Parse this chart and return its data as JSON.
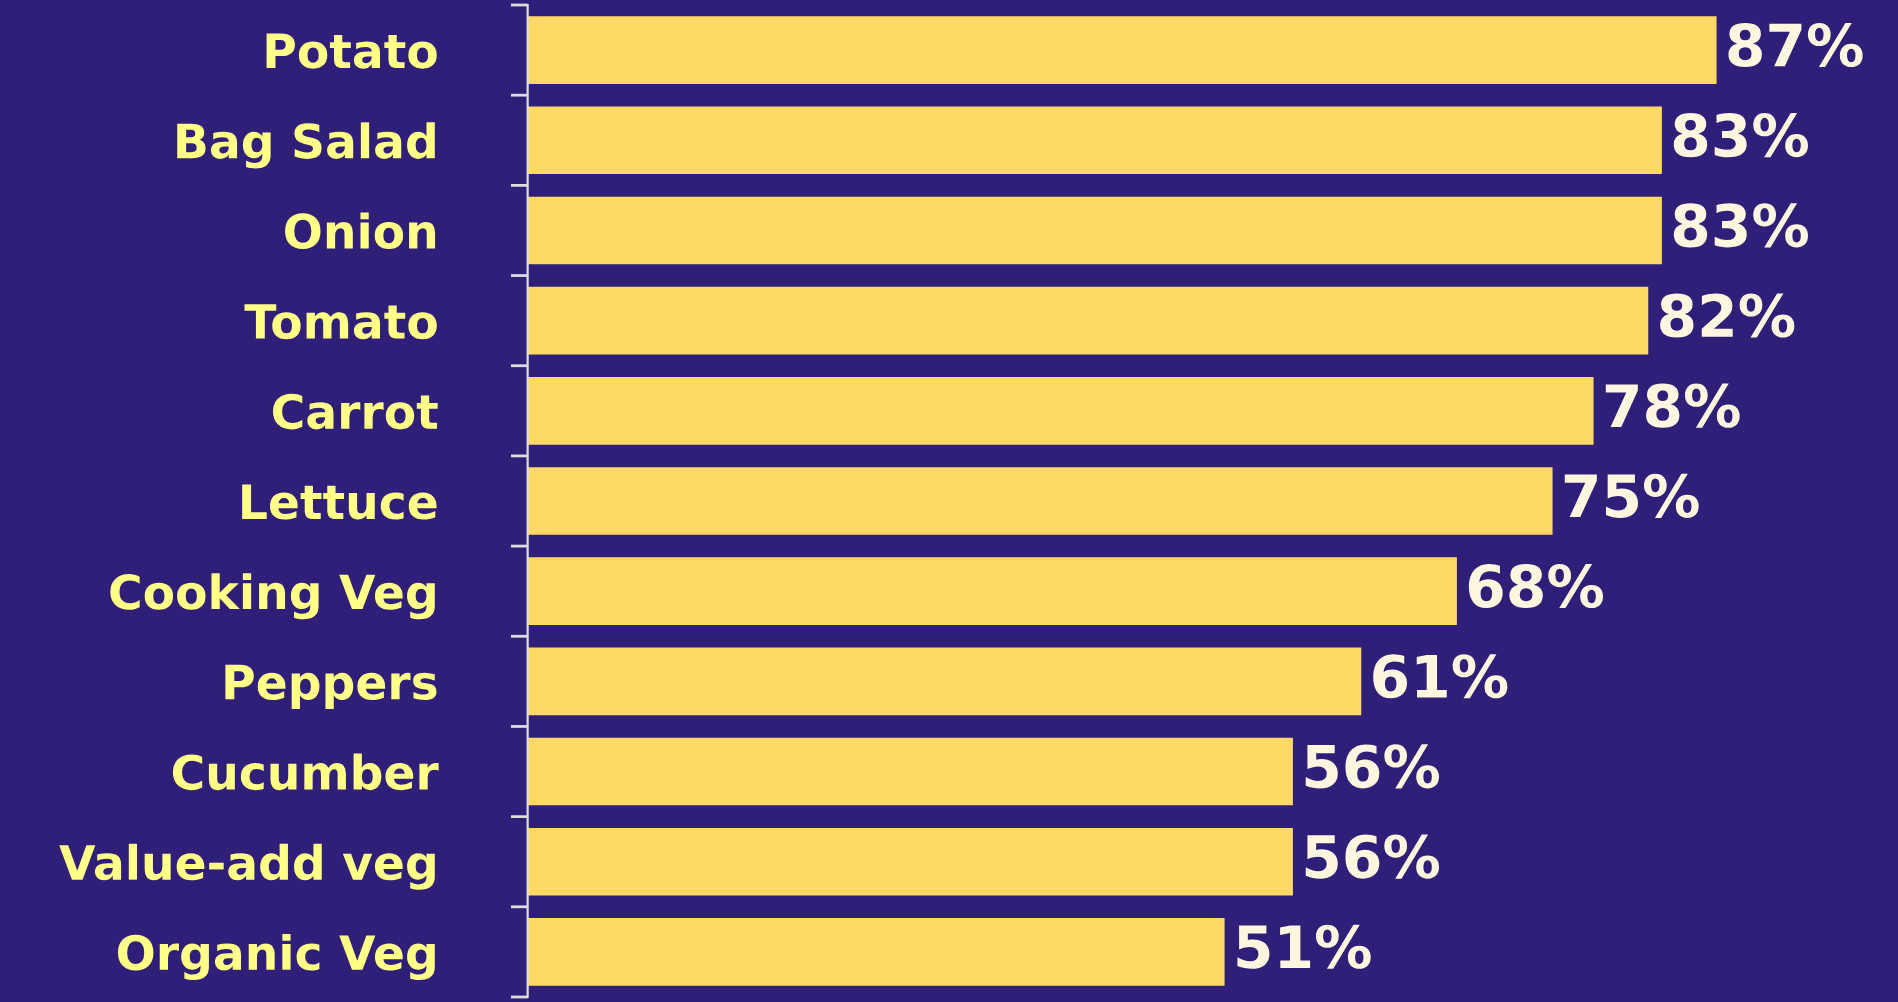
{
  "chart_data": {
    "type": "bar",
    "orientation": "horizontal",
    "categories": [
      "Potato",
      "Bag Salad",
      "Onion",
      "Tomato",
      "Carrot",
      "Lettuce",
      "Cooking Veg",
      "Peppers",
      "Cucumber",
      "Value-add veg",
      "Organic Veg"
    ],
    "values": [
      87,
      83,
      83,
      82,
      78,
      75,
      68,
      61,
      56,
      56,
      51
    ],
    "value_labels": [
      "87%",
      "83%",
      "83%",
      "82%",
      "78%",
      "75%",
      "68%",
      "61%",
      "56%",
      "56%",
      "51%"
    ],
    "color": "#ffd966",
    "xlim": [
      0,
      100
    ],
    "tick_labels": "y",
    "grid": false,
    "legend": false
  }
}
